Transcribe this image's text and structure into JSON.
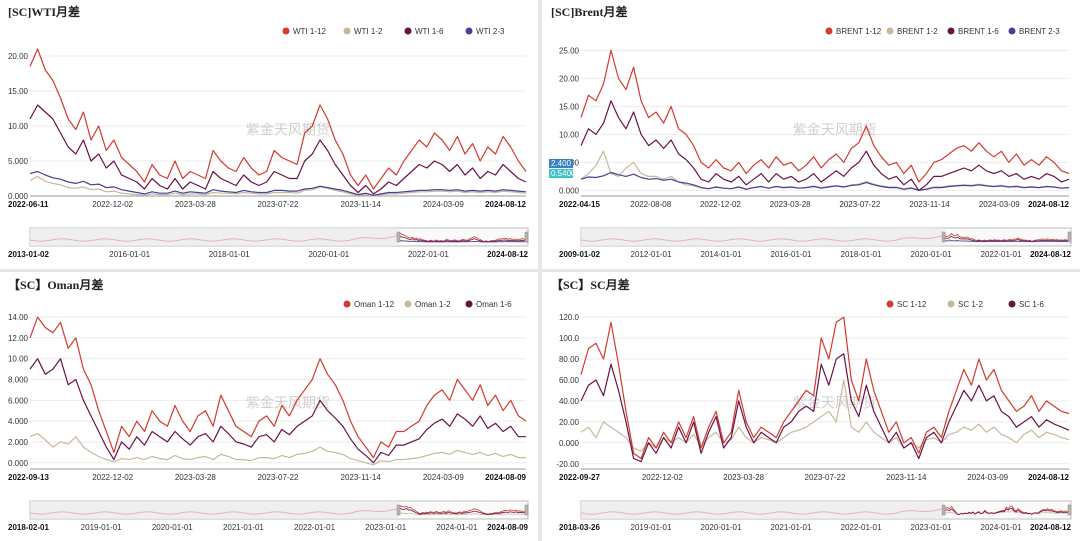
{
  "watermark": "紫金天风期货",
  "chart_data": [
    {
      "type": "line",
      "title": "[SC]WTI月差",
      "ylim": [
        0,
        22
      ],
      "y_ticks": [
        "0.000",
        "5.000",
        "10.00",
        "15.00",
        "20.00"
      ],
      "y_tick_values": [
        0,
        5,
        10,
        15,
        20
      ],
      "x_ticks": [
        "2022-06-11",
        "2022-12-02",
        "2023-03-28",
        "2023-07-22",
        "2023-11-14",
        "2024-03-09",
        "2024-08-12"
      ],
      "overview_ticks": [
        "2013-01-02",
        "2016-01-01",
        "2018-01-01",
        "2020-01-01",
        "2022-01-01",
        "2024-08-12"
      ],
      "legend_position": "top-right",
      "series": [
        {
          "name": "WTI 1-12",
          "color": "#d23b2f",
          "values": [
            18.5,
            21,
            18,
            16.5,
            14,
            11,
            9.5,
            12,
            8,
            10,
            6.5,
            8,
            5.5,
            4.5,
            3.5,
            2,
            4.5,
            3,
            2.5,
            5,
            2.5,
            3.5,
            3,
            2.5,
            6.5,
            5,
            4,
            3.5,
            5.5,
            4,
            3,
            3.5,
            6.5,
            5.5,
            5,
            4.5,
            9,
            10,
            13,
            11,
            8,
            6,
            3,
            1.5,
            3,
            1,
            2.5,
            4,
            3,
            5,
            6.5,
            8,
            7,
            9,
            8,
            6.5,
            8.5,
            6,
            7.5,
            5,
            7,
            6,
            8.5,
            7,
            5,
            3.5
          ]
        },
        {
          "name": "WTI 1-2",
          "color": "#c9b79c",
          "values": [
            2.2,
            2.8,
            2.1,
            1.8,
            1.6,
            1.2,
            1.1,
            1.3,
            0.9,
            1,
            0.6,
            0.7,
            0.4,
            0.3,
            0.2,
            0.1,
            0.3,
            0.2,
            0.2,
            0.4,
            0.2,
            0.3,
            0.3,
            0.2,
            0.5,
            0.4,
            0.4,
            0.3,
            0.5,
            0.4,
            0.3,
            0.3,
            0.5,
            0.5,
            0.5,
            0.4,
            0.8,
            0.9,
            1.3,
            1.1,
            0.8,
            0.6,
            0.3,
            0.1,
            0.2,
            0,
            0.2,
            0.3,
            0.3,
            0.4,
            0.5,
            0.6,
            0.6,
            0.7,
            0.7,
            0.6,
            0.7,
            0.5,
            0.6,
            0.5,
            0.6,
            0.5,
            0.7,
            0.6,
            0.5,
            0.4
          ]
        },
        {
          "name": "WTI 1-6",
          "color": "#6b1245",
          "values": [
            11,
            13,
            12,
            11,
            9,
            7,
            6,
            8,
            5,
            6,
            4,
            5,
            3,
            2.5,
            2,
            1,
            2.5,
            1.5,
            1,
            2.5,
            1,
            2,
            1.5,
            1,
            3.5,
            2.5,
            2,
            1.5,
            3,
            2,
            1.5,
            2,
            3.5,
            3,
            2.5,
            2.5,
            5,
            6,
            8,
            6.5,
            4.5,
            3,
            1.5,
            0.5,
            1.5,
            0.3,
            1,
            2,
            1.5,
            2.5,
            3.5,
            4.5,
            4,
            5,
            4.5,
            3.5,
            4.5,
            3,
            4,
            2.5,
            3.5,
            3,
            4.5,
            3.5,
            2.5,
            2
          ]
        },
        {
          "name": "WTI 2-3",
          "color": "#4a3f96",
          "values": [
            3.2,
            3.5,
            3,
            2.6,
            2.4,
            2,
            1.8,
            2.1,
            1.6,
            1.7,
            1.2,
            1.3,
            0.9,
            0.7,
            0.5,
            0.3,
            0.6,
            0.4,
            0.4,
            0.7,
            0.4,
            0.6,
            0.5,
            0.4,
            0.9,
            0.7,
            0.6,
            0.5,
            0.8,
            0.6,
            0.5,
            0.5,
            0.8,
            0.8,
            0.7,
            0.7,
            1,
            1.1,
            1.4,
            1.2,
            1,
            0.8,
            0.5,
            0.2,
            0.4,
            0.1,
            0.3,
            0.5,
            0.5,
            0.6,
            0.7,
            0.8,
            0.8,
            0.9,
            0.9,
            0.8,
            0.9,
            0.7,
            0.8,
            0.7,
            0.8,
            0.7,
            0.9,
            0.8,
            0.7,
            0.6
          ]
        }
      ]
    },
    {
      "type": "line",
      "title": "[SC]Brent月差",
      "ylim": [
        -1,
        26.5
      ],
      "y_ticks": [
        "0.000",
        "5.000",
        "10.00",
        "15.00",
        "20.00",
        "25.00"
      ],
      "y_tick_values": [
        0,
        5,
        10,
        15,
        20,
        25
      ],
      "x_ticks": [
        "2022-04-15",
        "2022-08-08",
        "2022-12-02",
        "2023-03-28",
        "2023-07-22",
        "2023-11-14",
        "2024-03-09",
        "2024-08-12"
      ],
      "overview_ticks": [
        "2009-01-02",
        "2012-01-01",
        "2014-01-01",
        "2016-01-01",
        "2018-01-01",
        "2020-01-01",
        "2022-01-01",
        "2024-08-12"
      ],
      "readouts": [
        "2.400",
        "0.5400"
      ],
      "legend_position": "top-right",
      "series": [
        {
          "name": "BRENT 1-12",
          "color": "#d23b2f",
          "values": [
            13,
            17,
            16,
            19,
            25,
            20,
            18,
            22,
            16,
            13,
            14,
            12,
            15,
            11,
            10,
            8,
            5,
            4,
            5.5,
            4,
            3.5,
            5,
            3,
            4.5,
            5.5,
            4,
            6,
            4.5,
            5,
            3.5,
            4.5,
            6,
            4,
            5.5,
            6.5,
            5,
            7.5,
            8.5,
            11.5,
            8,
            6,
            4.5,
            5,
            3,
            4.5,
            1.5,
            3,
            5,
            5.5,
            6.5,
            7.5,
            8,
            7,
            8.5,
            7,
            6,
            7,
            5,
            6.5,
            4.5,
            5.5,
            4.5,
            6,
            5,
            3.5,
            3
          ]
        },
        {
          "name": "BRENT 1-2",
          "color": "#c9b79c",
          "values": [
            2,
            3,
            4.5,
            7,
            3,
            2.5,
            4,
            5,
            3,
            2.5,
            2.5,
            2,
            2.5,
            1.5,
            1,
            0.8,
            0.5,
            0.3,
            0.6,
            0.4,
            0.3,
            0.6,
            0.3,
            0.5,
            0.7,
            0.4,
            0.7,
            0.5,
            0.6,
            0.4,
            0.5,
            0.8,
            0.5,
            0.7,
            0.8,
            0.6,
            1,
            1.1,
            1.6,
            1.1,
            0.8,
            0.6,
            0.6,
            0.3,
            0.5,
            0.1,
            0.3,
            0.6,
            0.6,
            0.8,
            0.9,
            1,
            0.9,
            1.1,
            0.9,
            0.7,
            0.9,
            0.6,
            0.8,
            0.5,
            0.7,
            0.5,
            0.7,
            0.6,
            0.4,
            0.5
          ]
        },
        {
          "name": "BRENT 1-6",
          "color": "#6b1245",
          "values": [
            8,
            11,
            10,
            12,
            16,
            13,
            11,
            14,
            10,
            8,
            9,
            7.5,
            9,
            6.5,
            5.5,
            4,
            2,
            1.5,
            3,
            2,
            1.5,
            2.5,
            1,
            2,
            3,
            1.5,
            3,
            2,
            2.5,
            1.5,
            2,
            3,
            1.5,
            2.5,
            3.5,
            2.5,
            4,
            5,
            7,
            4.5,
            3,
            2,
            2.5,
            1,
            2,
            0,
            1,
            2.5,
            2.5,
            3,
            3.5,
            4,
            3.5,
            4.5,
            3.5,
            3,
            3.5,
            2.5,
            3,
            2,
            2.5,
            2,
            3,
            2.5,
            1.5,
            2
          ]
        },
        {
          "name": "BRENT 2-3",
          "color": "#4a3f96",
          "values": [
            2,
            2.4,
            2.3,
            2.6,
            3.2,
            2.8,
            2.5,
            2.9,
            2.3,
            2,
            2.1,
            1.8,
            2,
            1.5,
            1.3,
            1,
            0.5,
            0.3,
            0.6,
            0.4,
            0.3,
            0.6,
            0.2,
            0.5,
            0.7,
            0.4,
            0.7,
            0.5,
            0.6,
            0.4,
            0.5,
            0.7,
            0.4,
            0.6,
            0.8,
            0.6,
            0.9,
            1,
            1.4,
            1,
            0.7,
            0.5,
            0.5,
            0.2,
            0.4,
            0,
            0.2,
            0.5,
            0.5,
            0.7,
            0.8,
            0.9,
            0.8,
            1,
            0.8,
            0.7,
            0.8,
            0.6,
            0.7,
            0.5,
            0.6,
            0.5,
            0.7,
            0.6,
            0.4,
            0.5
          ]
        }
      ]
    },
    {
      "type": "line",
      "title": "【SC】Oman月差",
      "ylim": [
        -0.6,
        14.2
      ],
      "y_ticks": [
        "0.000",
        "2.000",
        "4.000",
        "6.000",
        "8.000",
        "10.00",
        "12.00",
        "14.00"
      ],
      "y_tick_values": [
        0,
        2,
        4,
        6,
        8,
        10,
        12,
        14
      ],
      "x_ticks": [
        "2022-09-13",
        "2022-12-02",
        "2023-03-28",
        "2023-07-22",
        "2023-11-14",
        "2024-03-09",
        "2024-08-09"
      ],
      "overview_ticks": [
        "2018-02-01",
        "2019-01-01",
        "2020-01-01",
        "2021-01-01",
        "2022-01-01",
        "2023-01-01",
        "2024-01-01",
        "2024-08-09"
      ],
      "legend_position": "top-right",
      "series": [
        {
          "name": "Oman 1-12",
          "color": "#d23b2f",
          "values": [
            12,
            14,
            13,
            12.5,
            13.5,
            11,
            12,
            9,
            7.5,
            5,
            3,
            1,
            3.5,
            2.5,
            4,
            3,
            5,
            4,
            3.5,
            5.5,
            4,
            3,
            4.5,
            5,
            3.5,
            6.5,
            5,
            3.5,
            3,
            2.5,
            4,
            4.5,
            3.5,
            5.5,
            4.5,
            6,
            7,
            8,
            10,
            8.5,
            7.5,
            6,
            4,
            2.5,
            1.5,
            0.5,
            2,
            1.5,
            3,
            3,
            3.5,
            4,
            5.5,
            6.5,
            7,
            6,
            8,
            7,
            6,
            7.5,
            5.5,
            6.5,
            5,
            6,
            4.5,
            4
          ]
        },
        {
          "name": "Oman 1-2",
          "color": "#c9b79c",
          "values": [
            2.5,
            2.8,
            2.2,
            1.5,
            2,
            1.8,
            2.5,
            1.5,
            1,
            0.6,
            0.3,
            0.1,
            0.4,
            0.3,
            0.5,
            0.3,
            0.6,
            0.4,
            0.3,
            0.7,
            0.4,
            0.3,
            0.5,
            0.6,
            0.3,
            0.8,
            0.6,
            0.3,
            0.3,
            0.2,
            0.5,
            0.5,
            0.4,
            0.7,
            0.5,
            0.8,
            0.9,
            1.1,
            1.5,
            1.1,
            1,
            0.8,
            0.4,
            0.2,
            0,
            -0.2,
            0.2,
            0.1,
            0.3,
            0.3,
            0.4,
            0.5,
            0.7,
            0.9,
            1,
            0.8,
            1.2,
            1,
            0.8,
            1,
            0.7,
            0.9,
            0.6,
            0.8,
            0.5,
            0.5
          ]
        },
        {
          "name": "Oman 1-6",
          "color": "#6b1245",
          "values": [
            9,
            10,
            8.5,
            9,
            10,
            7.5,
            8,
            6,
            4.5,
            3,
            1.5,
            0.3,
            2,
            1.3,
            2.5,
            1.7,
            3,
            2.5,
            2,
            3,
            2.3,
            1.7,
            2.5,
            2.8,
            2,
            3.5,
            2.8,
            2,
            1.8,
            1.5,
            2.5,
            2.7,
            2,
            3.2,
            2.7,
            3.5,
            4,
            4.5,
            6,
            5,
            4.3,
            3.5,
            2.3,
            1.3,
            0.7,
            0,
            1,
            0.7,
            1.7,
            1.7,
            2,
            2.3,
            3.2,
            3.8,
            4.2,
            3.5,
            4.7,
            4.2,
            3.5,
            4.5,
            3.3,
            3.8,
            3,
            3.5,
            2.5,
            2.5
          ]
        }
      ]
    },
    {
      "type": "line",
      "title": "【SC】SC月差",
      "ylim": [
        -25,
        122
      ],
      "y_ticks": [
        "-20.00",
        "0.000",
        "20.00",
        "40.00",
        "60.00",
        "80.00",
        "100.0",
        "120.0"
      ],
      "y_tick_values": [
        -20,
        0,
        20,
        40,
        60,
        80,
        100,
        120
      ],
      "x_ticks": [
        "2022-09-27",
        "2022-12-02",
        "2023-03-28",
        "2023-07-22",
        "2023-11-14",
        "2024-03-09",
        "2024-08-12"
      ],
      "overview_ticks": [
        "2018-03-26",
        "2019-01-01",
        "2020-01-01",
        "2021-01-01",
        "2022-01-01",
        "2023-01-01",
        "2024-01-01",
        "2024-08-12"
      ],
      "legend_position": "top-right",
      "series": [
        {
          "name": "SC 1-12",
          "color": "#d23b2f",
          "values": [
            65,
            90,
            95,
            80,
            115,
            75,
            30,
            -10,
            -15,
            5,
            -5,
            10,
            0,
            20,
            5,
            25,
            -5,
            15,
            30,
            0,
            10,
            50,
            20,
            5,
            15,
            10,
            5,
            20,
            30,
            40,
            50,
            45,
            100,
            80,
            115,
            120,
            60,
            40,
            80,
            50,
            30,
            10,
            20,
            0,
            5,
            -10,
            10,
            15,
            5,
            30,
            50,
            70,
            55,
            80,
            60,
            70,
            50,
            40,
            30,
            35,
            45,
            30,
            40,
            35,
            30,
            28
          ]
        },
        {
          "name": "SC 1-2",
          "color": "#c9b79c",
          "values": [
            10,
            15,
            5,
            20,
            15,
            10,
            5,
            -5,
            -8,
            0,
            -5,
            5,
            0,
            5,
            0,
            8,
            -3,
            5,
            10,
            0,
            3,
            15,
            5,
            0,
            5,
            3,
            0,
            5,
            10,
            12,
            15,
            20,
            25,
            30,
            20,
            60,
            15,
            10,
            20,
            10,
            5,
            0,
            5,
            -5,
            0,
            -5,
            3,
            5,
            0,
            8,
            10,
            15,
            12,
            18,
            10,
            15,
            8,
            5,
            0,
            8,
            12,
            5,
            10,
            8,
            5,
            3
          ]
        },
        {
          "name": "SC 1-6",
          "color": "#6b1245",
          "values": [
            40,
            55,
            60,
            45,
            75,
            50,
            20,
            -15,
            -18,
            0,
            -10,
            5,
            -5,
            15,
            0,
            20,
            -10,
            10,
            25,
            -5,
            5,
            40,
            15,
            0,
            10,
            5,
            0,
            15,
            20,
            30,
            35,
            30,
            75,
            55,
            80,
            85,
            40,
            25,
            55,
            30,
            15,
            0,
            10,
            -5,
            0,
            -15,
            5,
            10,
            0,
            20,
            35,
            50,
            40,
            55,
            40,
            45,
            30,
            25,
            15,
            20,
            25,
            15,
            22,
            18,
            15,
            12
          ]
        }
      ]
    }
  ]
}
